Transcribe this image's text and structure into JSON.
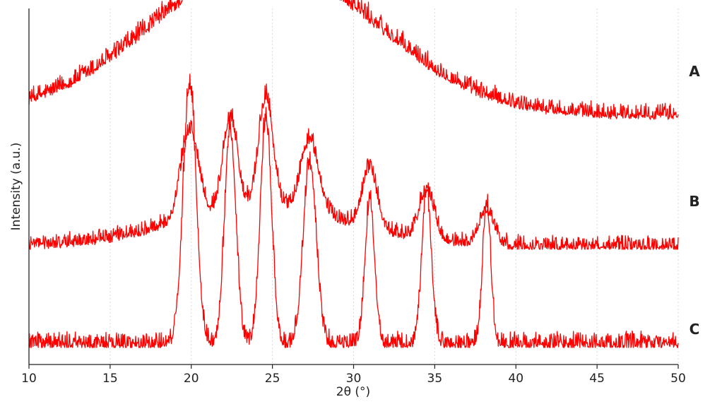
{
  "chart_data": {
    "type": "line",
    "xlabel": "2θ (°)",
    "ylabel": "Intensity (a.u.)",
    "xlim": [
      10,
      50
    ],
    "xticks": [
      10,
      15,
      20,
      25,
      30,
      35,
      40,
      45,
      50
    ],
    "y_tick_labels": false,
    "grid": "vertical dotted",
    "color": "#ff0000",
    "series": [
      {
        "name": "A",
        "baseline": 0.42,
        "noise": 0.07,
        "peaks": [
          {
            "center": 24.5,
            "height": 1.78,
            "width": 6.8,
            "shape": "gaussian"
          }
        ]
      },
      {
        "name": "B",
        "baseline": 0.0,
        "noise": 0.07,
        "peaks": [
          {
            "center": 24.5,
            "height": 0.45,
            "width": 5.5,
            "shape": "gaussian"
          },
          {
            "center": 19.9,
            "height": 1.05,
            "width": 0.55,
            "shape": "gaussian"
          },
          {
            "center": 22.4,
            "height": 1.1,
            "width": 0.45,
            "shape": "gaussian"
          },
          {
            "center": 24.6,
            "height": 1.3,
            "width": 0.45,
            "shape": "gaussian"
          },
          {
            "center": 27.3,
            "height": 0.85,
            "width": 0.55,
            "shape": "gaussian"
          },
          {
            "center": 31.0,
            "height": 0.7,
            "width": 0.45,
            "shape": "gaussian"
          },
          {
            "center": 34.5,
            "height": 0.58,
            "width": 0.45,
            "shape": "gaussian"
          },
          {
            "center": 38.2,
            "height": 0.4,
            "width": 0.45,
            "shape": "gaussian"
          }
        ]
      },
      {
        "name": "C",
        "baseline": 0.0,
        "noise": 0.06,
        "peaks": [
          {
            "center": 19.9,
            "height": 2.3,
            "width": 0.4,
            "shape": "gaussian"
          },
          {
            "center": 22.4,
            "height": 1.9,
            "width": 0.35,
            "shape": "gaussian"
          },
          {
            "center": 24.6,
            "height": 2.0,
            "width": 0.35,
            "shape": "gaussian"
          },
          {
            "center": 27.3,
            "height": 1.6,
            "width": 0.4,
            "shape": "gaussian"
          },
          {
            "center": 31.0,
            "height": 1.25,
            "width": 0.3,
            "shape": "gaussian"
          },
          {
            "center": 34.5,
            "height": 1.3,
            "width": 0.3,
            "shape": "gaussian"
          },
          {
            "center": 38.2,
            "height": 1.25,
            "width": 0.25,
            "shape": "gaussian"
          }
        ]
      }
    ]
  }
}
